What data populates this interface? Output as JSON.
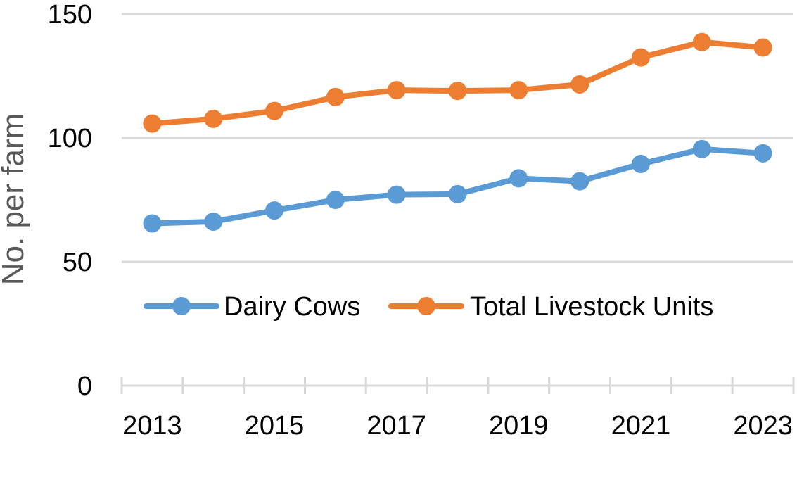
{
  "chart_data": {
    "type": "line",
    "title": "",
    "xlabel": "",
    "ylabel": "No. per farm",
    "x": [
      2013,
      2014,
      2015,
      2016,
      2017,
      2018,
      2019,
      2020,
      2021,
      2022,
      2023
    ],
    "x_tick_labels": [
      "2013",
      "2015",
      "2017",
      "2019",
      "2021",
      "2023"
    ],
    "y_tick_labels": [
      "0",
      "50",
      "100",
      "150"
    ],
    "ylim": [
      0,
      150
    ],
    "grid": true,
    "legend_position": "inside-lower-center",
    "series": [
      {
        "name": "Dairy Cows",
        "color": "#5B9BD5",
        "values": [
          65.5,
          66.2,
          70.7,
          75.0,
          77.1,
          77.3,
          83.7,
          82.5,
          89.5,
          95.5,
          93.8
        ]
      },
      {
        "name": "Total Livestock Units",
        "color": "#ED7D31",
        "values": [
          105.8,
          107.7,
          110.9,
          116.5,
          119.3,
          119.0,
          119.3,
          121.6,
          132.5,
          138.7,
          136.5
        ]
      }
    ]
  }
}
